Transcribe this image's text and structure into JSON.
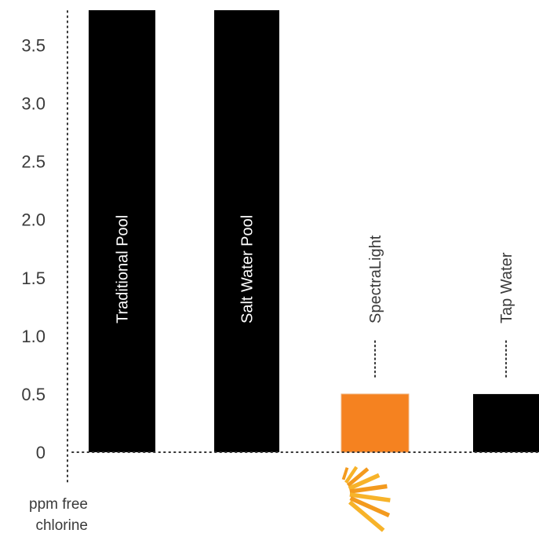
{
  "chart_data": {
    "type": "bar",
    "ylabel_lines": [
      "ppm free",
      "chlorine"
    ],
    "ylim": [
      0,
      3.8
    ],
    "yticks": [
      "0",
      "0.5",
      "1.0",
      "1.5",
      "2.0",
      "2.5",
      "3.0",
      "3.5"
    ],
    "ytick_values": [
      0,
      0.5,
      1.0,
      1.5,
      2.0,
      2.5,
      3.0,
      3.5
    ],
    "categories": [
      "Traditional Pool",
      "Salt Water Pool",
      "SpectraLight",
      "Tap Water"
    ],
    "values": [
      3.8,
      3.8,
      0.5,
      0.5
    ],
    "bar_colors": [
      "#000000",
      "#000000",
      "#f58220",
      "#000000"
    ],
    "label_colors": [
      "#ffffff",
      "#ffffff",
      "#3a3a3a",
      "#3a3a3a"
    ],
    "label_position": [
      "inside",
      "inside",
      "above",
      "above"
    ],
    "grid": false,
    "logo": "spectralight-sunburst-logo"
  }
}
